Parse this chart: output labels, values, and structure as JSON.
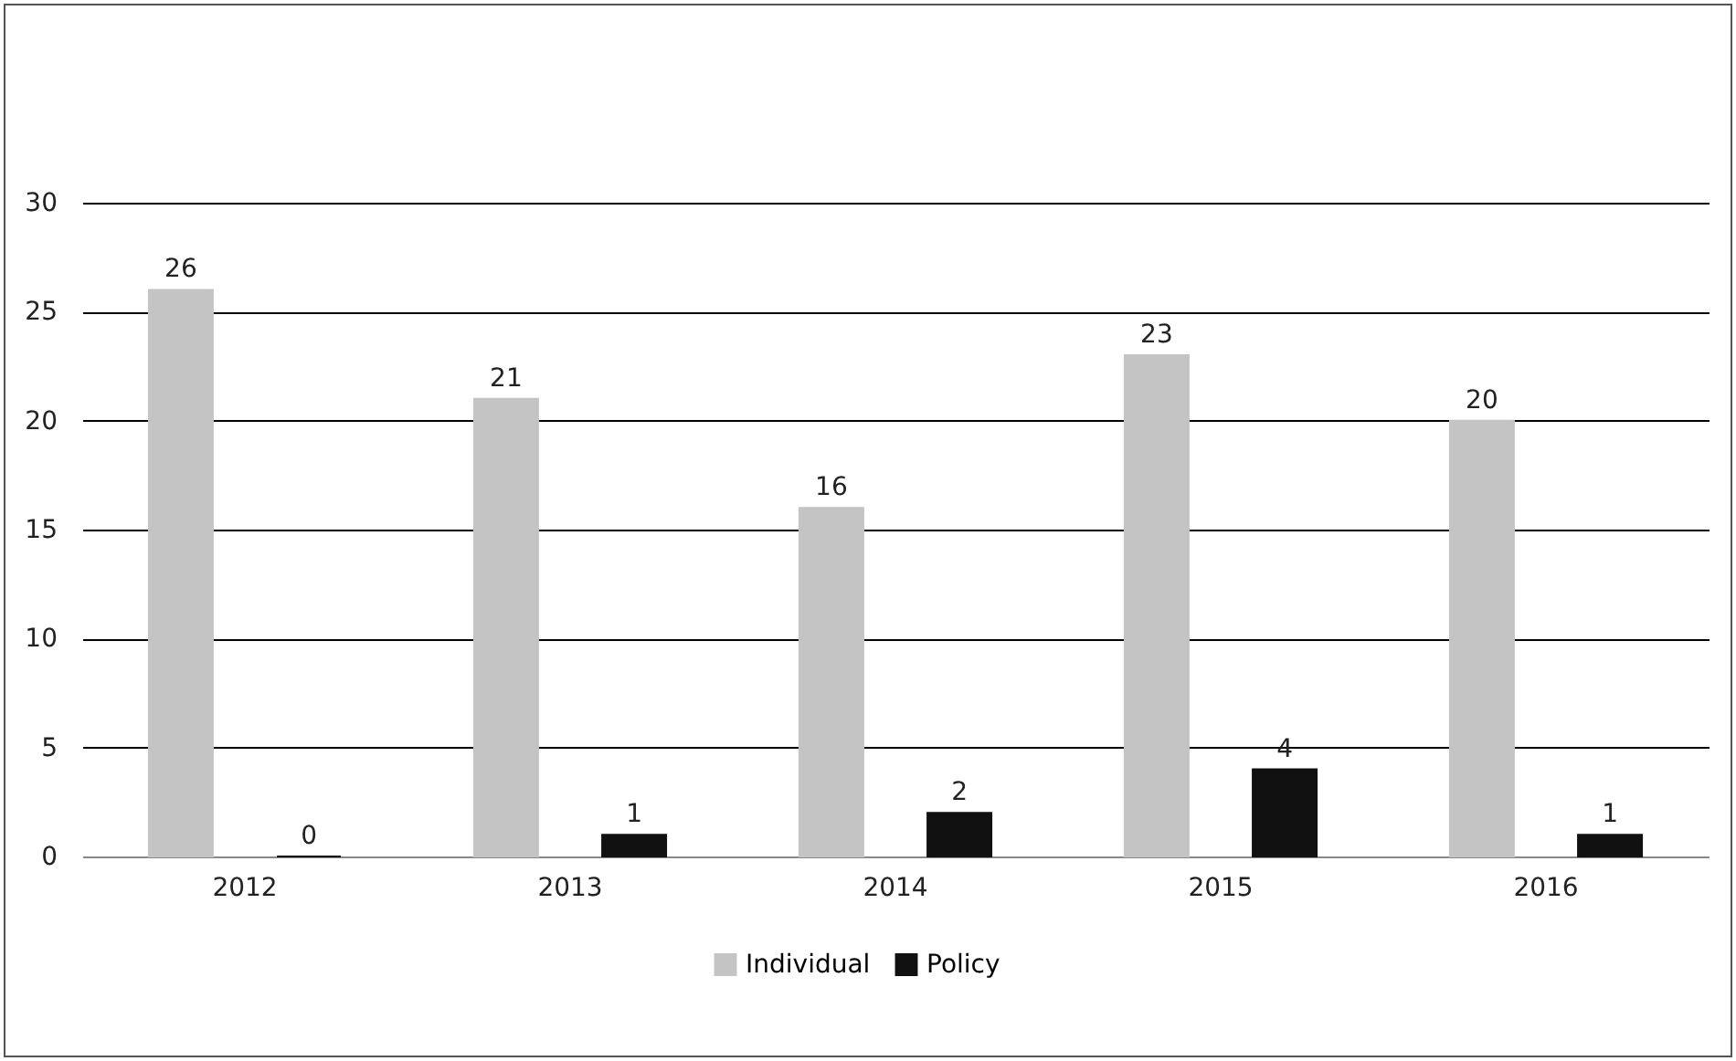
{
  "chart_data": {
    "type": "bar",
    "categories": [
      "2012",
      "2013",
      "2014",
      "2015",
      "2016"
    ],
    "series": [
      {
        "name": "Individual",
        "color": "#c4c4c4",
        "values": [
          26,
          21,
          16,
          23,
          20
        ]
      },
      {
        "name": "Policy",
        "color": "#111111",
        "values": [
          0,
          1,
          2,
          4,
          1
        ]
      }
    ],
    "ylim": [
      0,
      30
    ],
    "yticks": [
      0,
      5,
      10,
      15,
      20,
      25,
      30
    ],
    "grid": "y",
    "legend": "bottom",
    "data_labels": true
  }
}
